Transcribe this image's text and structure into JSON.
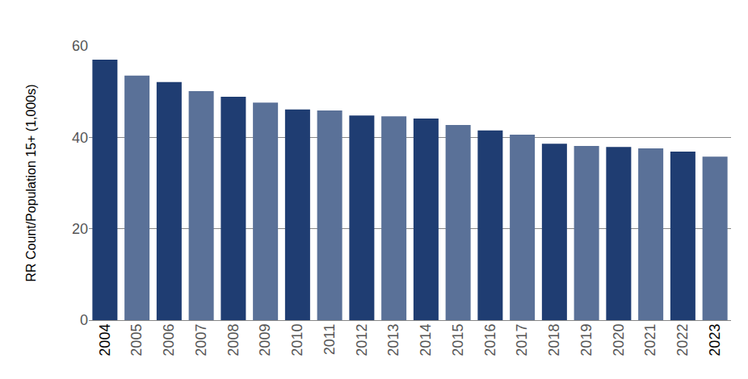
{
  "chart_data": {
    "type": "bar",
    "y_label": "RR Count/Population 15+ (1,000s)",
    "categories": [
      "2004",
      "2005",
      "2006",
      "2007",
      "2008",
      "2009",
      "2010",
      "2011",
      "2012",
      "2013",
      "2014",
      "2015",
      "2016",
      "2017",
      "2018",
      "2019",
      "2020",
      "2021",
      "2022",
      "2023"
    ],
    "values": [
      57.0,
      53.5,
      52.1,
      50.1,
      48.9,
      47.6,
      46.1,
      45.9,
      44.8,
      44.6,
      44.1,
      42.7,
      41.5,
      40.6,
      38.6,
      38.1,
      37.9,
      37.6,
      36.9,
      35.8
    ],
    "colors": [
      "#1f3d72",
      "#5a7198",
      "#1f3d72",
      "#5a7198",
      "#1f3d72",
      "#5a7198",
      "#1f3d72",
      "#5a7198",
      "#1f3d72",
      "#5a7198",
      "#1f3d72",
      "#5a7198",
      "#1f3d72",
      "#5a7198",
      "#1f3d72",
      "#5a7198",
      "#1f3d72",
      "#5a7198",
      "#1f3d72",
      "#5a7198"
    ],
    "ylim": [
      0,
      60
    ],
    "yticks": [
      0,
      20,
      40,
      60
    ],
    "grid": true
  }
}
